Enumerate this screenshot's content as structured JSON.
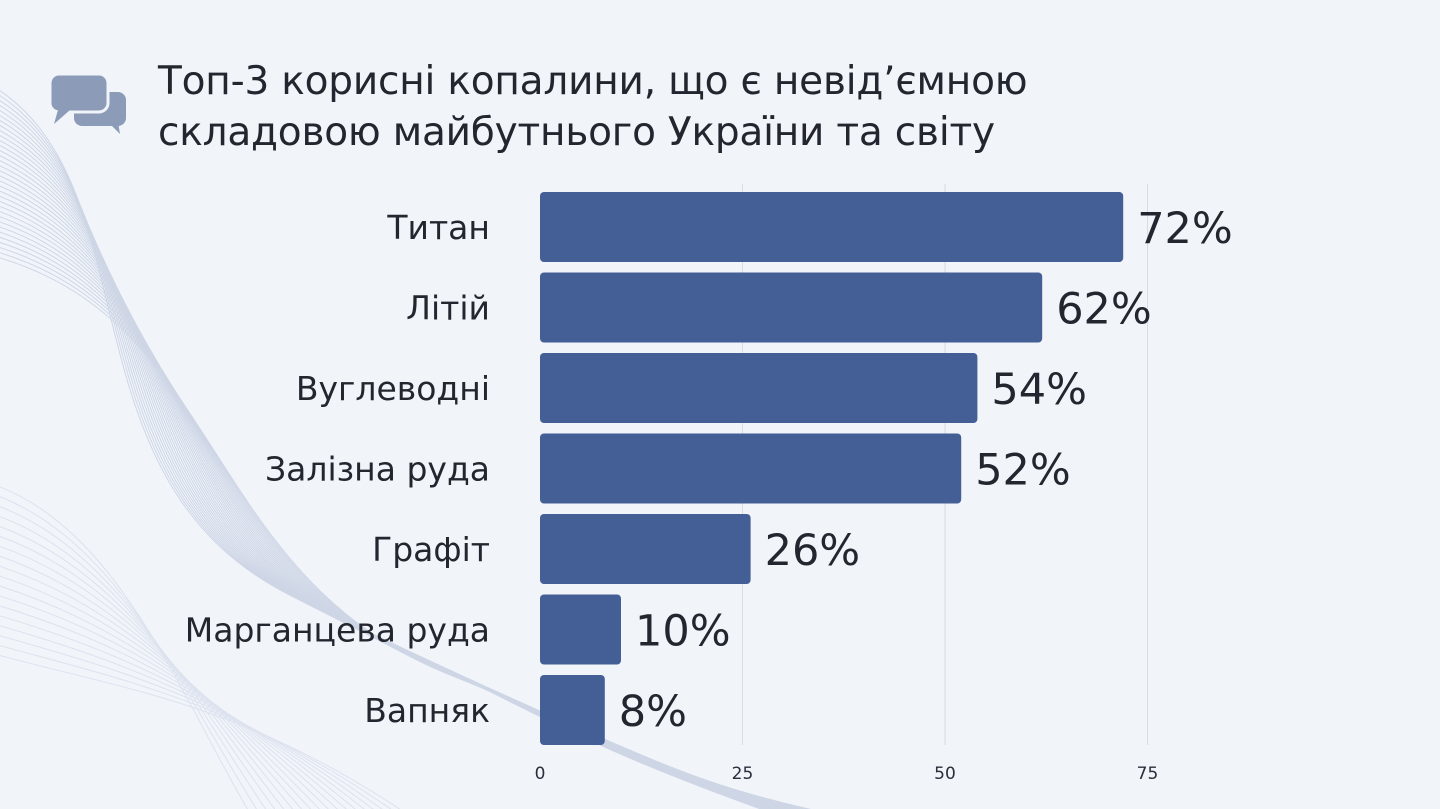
{
  "title": "Топ-3 корисні копалини, що є невід’ємною складовою майбутнього України та світу",
  "colors": {
    "bar": "#445e96",
    "background": "#f1f4f9",
    "grid": "#d6dbe4",
    "icon": "#8b9bb8"
  },
  "icons": {
    "title": "chat-bubbles-icon"
  },
  "chart_data": {
    "type": "bar",
    "orientation": "horizontal",
    "categories": [
      "Титан",
      "Літій",
      "Вуглеводні",
      "Залізна руда",
      "Графіт",
      "Марганцева руда",
      "Вапняк"
    ],
    "values": [
      72,
      62,
      54,
      52,
      26,
      10,
      8
    ],
    "data_labels": [
      "72%",
      "62%",
      "54%",
      "52%",
      "26%",
      "10%",
      "8%"
    ],
    "x_ticks": [
      0,
      25,
      50,
      75
    ],
    "xlim": [
      0,
      100
    ],
    "grid": true,
    "legend": "none"
  }
}
